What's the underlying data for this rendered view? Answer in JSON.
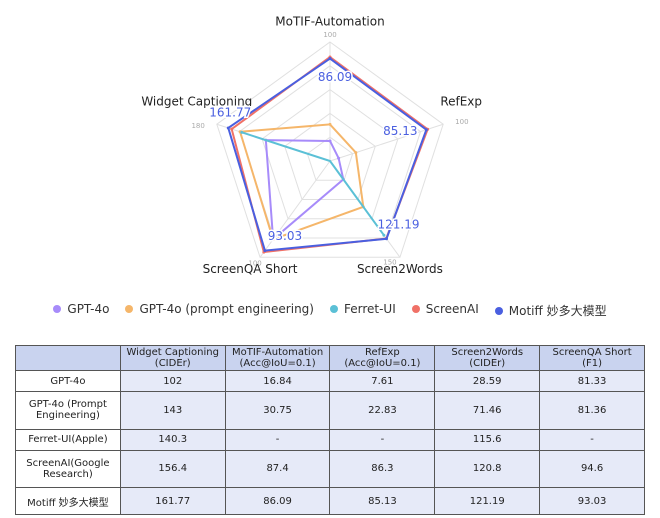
{
  "chart_data": {
    "type": "radar",
    "axes": [
      {
        "name": "MoTIF-Automation",
        "max": 100
      },
      {
        "name": "RefExp",
        "max": 100
      },
      {
        "name": "Screen2Words",
        "max": 150
      },
      {
        "name": "ScreenQA Short",
        "max": 100
      },
      {
        "name": "Widget Captioning",
        "max": 180
      }
    ],
    "series": [
      {
        "name": "GPT-4o",
        "color": "#a78bfa",
        "values": [
          16.84,
          7.61,
          28.59,
          81.33,
          102
        ]
      },
      {
        "name": "GPT-4o (prompt engineering)",
        "color": "#f5b66a",
        "values": [
          30.75,
          22.83,
          71.46,
          81.36,
          143
        ]
      },
      {
        "name": "Ferret-UI",
        "color": "#5bc0d6",
        "values": [
          null,
          null,
          115.6,
          null,
          140.3
        ]
      },
      {
        "name": "ScreenAI",
        "color": "#f07167",
        "values": [
          87.4,
          86.3,
          120.8,
          94.6,
          156.4
        ]
      },
      {
        "name": "Motiff 妙多大模型",
        "color": "#4a5fe0",
        "values": [
          86.09,
          85.13,
          121.19,
          93.03,
          161.77
        ],
        "show_labels": true
      }
    ]
  },
  "table": {
    "header": [
      "Widget Captioning\n(CIDEr)",
      "MoTIF-Automation\n(Acc@IoU=0.1)",
      "RefExp\n(Acc@IoU=0.1)",
      "Screen2Words\n(CIDEr)",
      "ScreenQA Short\n(F1)"
    ],
    "rows": [
      [
        "GPT-4o",
        "102",
        "16.84",
        "7.61",
        "28.59",
        "81.33"
      ],
      [
        "GPT-4o (Prompt\nEngineering)",
        "143",
        "30.75",
        "22.83",
        "71.46",
        "81.36"
      ],
      [
        "Ferret-UI(Apple)",
        "140.3",
        "-",
        "-",
        "115.6",
        "-"
      ],
      [
        "ScreenAI(Google\nResearch)",
        "156.4",
        "87.4",
        "86.3",
        "120.8",
        "94.6"
      ],
      [
        "Motiff 妙多大模型",
        "161.77",
        "86.09",
        "85.13",
        "121.19",
        "93.03"
      ]
    ]
  }
}
